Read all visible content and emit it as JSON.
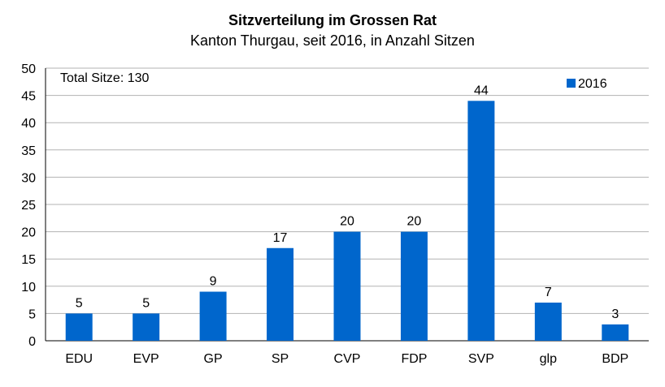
{
  "chart_data": {
    "type": "bar",
    "title": "Sitzverteilung im Grossen Rat",
    "subtitle": "Kanton Thurgau, seit 2016, in Anzahl Sitzen",
    "categories": [
      "EDU",
      "EVP",
      "GP",
      "SP",
      "CVP",
      "FDP",
      "SVP",
      "glp",
      "BDP"
    ],
    "series": [
      {
        "name": "2016",
        "values": [
          5,
          5,
          9,
          17,
          20,
          20,
          44,
          7,
          3
        ]
      }
    ],
    "ylim": [
      0,
      50
    ],
    "yticks": [
      0,
      5,
      10,
      15,
      20,
      25,
      30,
      35,
      40,
      45,
      50
    ],
    "annotation": "Total Sitze: 130",
    "grid": true,
    "legend": "top-right",
    "bar_color": "#0066CC",
    "grid_color": "#B3B3B3"
  }
}
